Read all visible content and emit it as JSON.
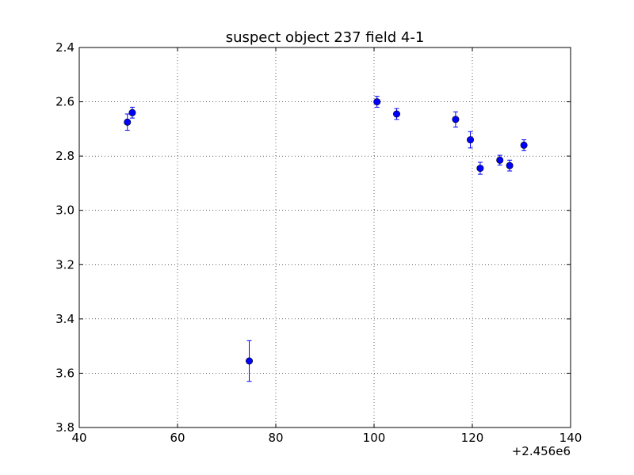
{
  "chart_data": {
    "type": "scatter",
    "title": "suspect object 237 field 4-1",
    "xlabel": "",
    "ylabel": "",
    "x_offset_label": "+2.456e6",
    "xlim": [
      40,
      140
    ],
    "ylim": [
      2.4,
      3.8
    ],
    "y_inverted": true,
    "grid": true,
    "grid_style": "dotted",
    "x_ticks": [
      40,
      60,
      80,
      100,
      120,
      140
    ],
    "x_tick_labels": [
      "40",
      "60",
      "80",
      "100",
      "120",
      "140"
    ],
    "y_ticks": [
      2.4,
      2.6,
      2.8,
      3.0,
      3.2,
      3.4,
      3.6,
      3.8
    ],
    "y_tick_labels": [
      "2.4",
      "2.6",
      "2.8",
      "3.0",
      "3.2",
      "3.4",
      "3.6",
      "3.8"
    ],
    "marker_color": "#0000ff",
    "errorbar_color": "#0000ff",
    "points": [
      {
        "x": 49.8,
        "y": 2.675,
        "err": 0.03
      },
      {
        "x": 50.8,
        "y": 2.64,
        "err": 0.02
      },
      {
        "x": 74.6,
        "y": 3.555,
        "err": 0.075
      },
      {
        "x": 100.6,
        "y": 2.6,
        "err": 0.02
      },
      {
        "x": 104.6,
        "y": 2.645,
        "err": 0.02
      },
      {
        "x": 116.6,
        "y": 2.665,
        "err": 0.028
      },
      {
        "x": 119.6,
        "y": 2.74,
        "err": 0.03
      },
      {
        "x": 121.6,
        "y": 2.845,
        "err": 0.022
      },
      {
        "x": 125.6,
        "y": 2.815,
        "err": 0.018
      },
      {
        "x": 127.6,
        "y": 2.835,
        "err": 0.02
      },
      {
        "x": 130.5,
        "y": 2.76,
        "err": 0.02
      }
    ]
  }
}
